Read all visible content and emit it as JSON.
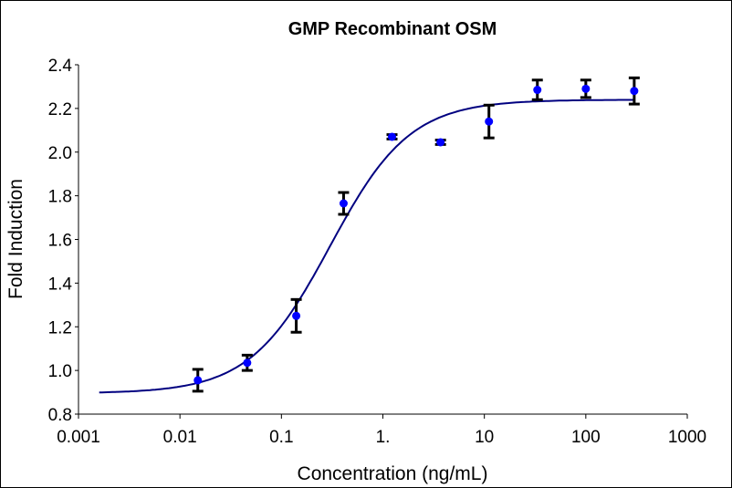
{
  "chart_data": {
    "type": "scatter",
    "title": "GMP Recombinant OSM",
    "xlabel": "Concentration (ng/mL)",
    "ylabel": "Fold Induction",
    "xscale": "log",
    "xlim": [
      0.001,
      1000
    ],
    "ylim": [
      0.8,
      2.4
    ],
    "xticks": [
      0.001,
      0.01,
      0.1,
      1,
      10,
      100,
      1000
    ],
    "xtick_labels": [
      "0.001",
      "0.01",
      "0.1",
      "1.",
      "10",
      "100",
      "1000"
    ],
    "yticks": [
      0.8,
      1.0,
      1.2,
      1.4,
      1.6,
      1.8,
      2.0,
      2.2,
      2.4
    ],
    "ytick_labels": [
      "0.8",
      "1.0",
      "1.2",
      "1.4",
      "1.6",
      "1.8",
      "2.0",
      "2.2",
      "2.4"
    ],
    "grid": false,
    "legend": "none",
    "series": [
      {
        "name": "GMP Recombinant OSM",
        "color": "#0000ff",
        "x": [
          0.015,
          0.046,
          0.14,
          0.41,
          1.23,
          3.7,
          11.1,
          33.3,
          100,
          300
        ],
        "y": [
          0.955,
          1.035,
          1.25,
          1.765,
          2.07,
          2.045,
          2.14,
          2.285,
          2.29,
          2.28
        ],
        "error": [
          0.05,
          0.035,
          0.075,
          0.05,
          0.01,
          0.01,
          0.075,
          0.045,
          0.04,
          0.06
        ]
      }
    ],
    "fit": {
      "type": "4PL",
      "color": "#000080",
      "bottom": 0.895,
      "top": 2.24,
      "ec50": 0.3,
      "hill": 1.1,
      "x_range": [
        0.0016,
        300
      ]
    }
  }
}
